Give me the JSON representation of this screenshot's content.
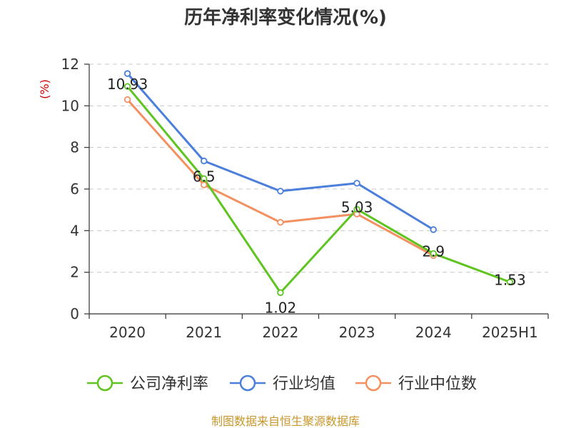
{
  "chart_data": {
    "type": "line",
    "title": "历年净利率变化情况(%)",
    "ylabel": "(%)",
    "ylim": [
      0,
      12
    ],
    "yticks": [
      0,
      2,
      4,
      6,
      8,
      10,
      12
    ],
    "categories": [
      "2020",
      "2021",
      "2022",
      "2023",
      "2024",
      "2025H1"
    ],
    "grid": true,
    "legend_position": "bottom",
    "series": [
      {
        "name": "公司净利率",
        "color": "#5ec41f",
        "values": [
          10.93,
          6.5,
          1.02,
          5.03,
          2.9,
          1.53
        ],
        "labels": [
          "10.93",
          "6.5",
          "1.02",
          "5.03",
          "2.9",
          "1.53"
        ]
      },
      {
        "name": "行业均值",
        "color": "#4a7fdc",
        "values": [
          11.55,
          7.35,
          5.9,
          6.28,
          4.05,
          null
        ]
      },
      {
        "name": "行业中位数",
        "color": "#f49060",
        "values": [
          10.3,
          6.2,
          4.4,
          4.8,
          2.8,
          null
        ]
      }
    ]
  },
  "source": {
    "text": "制图数据来自恒生聚源数据库",
    "color": "#c8962a"
  },
  "ylabel_color": "#cc0000"
}
